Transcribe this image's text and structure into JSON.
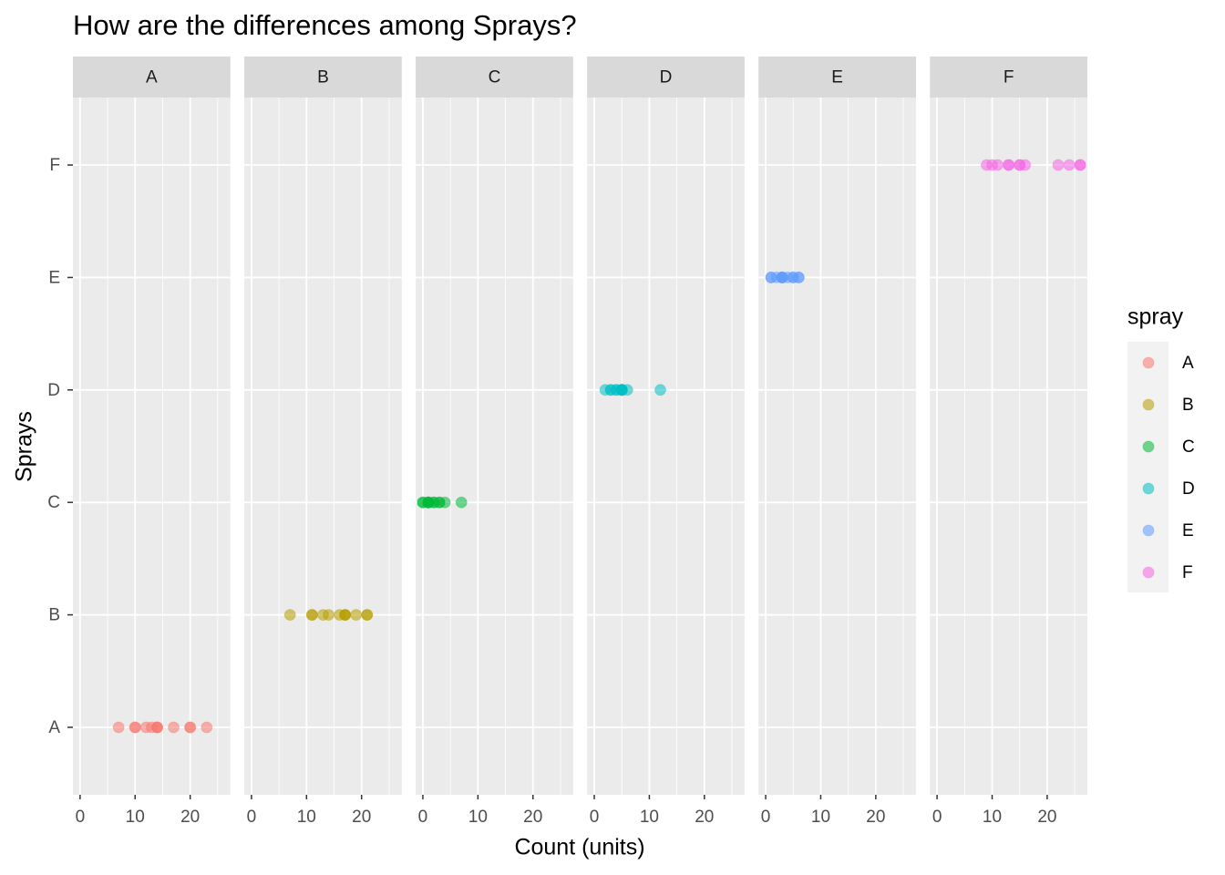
{
  "chart_data": {
    "type": "scatter",
    "title": "How are the differences among Sprays?",
    "xlabel": "Count (units)",
    "ylabel": "Sprays",
    "categories": [
      "A",
      "B",
      "C",
      "D",
      "E",
      "F"
    ],
    "xlim": [
      -1.3,
      27.3
    ],
    "xticks": [
      0,
      10,
      20
    ],
    "grid": true,
    "legend_title": "spray",
    "legend_position": "right",
    "series": [
      {
        "name": "A",
        "color": "#F8766D",
        "values": [
          10,
          7,
          20,
          14,
          14,
          12,
          10,
          23,
          17,
          20,
          14,
          13
        ]
      },
      {
        "name": "B",
        "color": "#B79F00",
        "values": [
          11,
          17,
          21,
          11,
          16,
          14,
          17,
          17,
          19,
          21,
          7,
          13
        ]
      },
      {
        "name": "C",
        "color": "#00BA38",
        "values": [
          0,
          1,
          7,
          2,
          3,
          1,
          2,
          1,
          3,
          0,
          1,
          4
        ]
      },
      {
        "name": "D",
        "color": "#00BFC4",
        "values": [
          3,
          5,
          12,
          6,
          4,
          3,
          5,
          5,
          5,
          5,
          2,
          4
        ]
      },
      {
        "name": "E",
        "color": "#619CFF",
        "values": [
          3,
          5,
          3,
          5,
          3,
          6,
          1,
          1,
          3,
          2,
          6,
          4
        ]
      },
      {
        "name": "F",
        "color": "#F564E3",
        "values": [
          11,
          9,
          15,
          22,
          15,
          16,
          13,
          10,
          26,
          26,
          24,
          13
        ]
      }
    ]
  }
}
